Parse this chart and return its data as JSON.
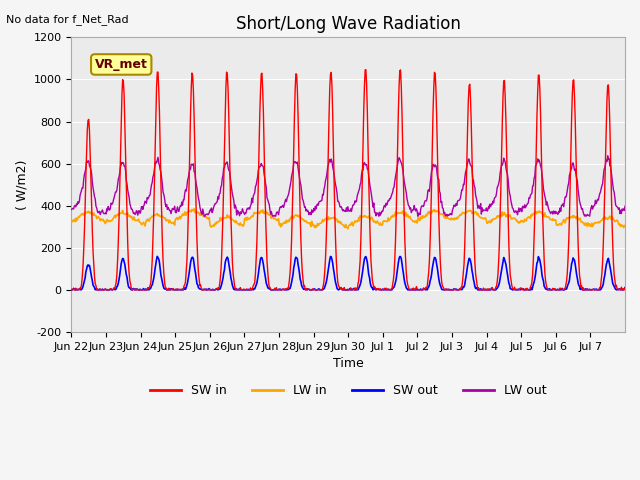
{
  "title": "Short/Long Wave Radiation",
  "ylabel": "( W/m2)",
  "xlabel": "Time",
  "annotation": "No data for f_Net_Rad",
  "legend_label": "VR_met",
  "ylim": [
    -200,
    1200
  ],
  "yticks": [
    -200,
    0,
    200,
    400,
    600,
    800,
    1000,
    1200
  ],
  "xtick_labels": [
    "Jun 22",
    "Jun 23",
    "Jun 24",
    "Jun 25",
    "Jun 26",
    "Jun 27",
    "Jun 28",
    "Jun 29",
    "Jun 30",
    "Jul 1",
    "Jul 2",
    "Jul 3",
    "Jul 4",
    "Jul 5",
    "Jul 6",
    "Jul 7"
  ],
  "colors": {
    "SW_in": "#ff0000",
    "LW_in": "#ffa500",
    "SW_out": "#0000ff",
    "LW_out": "#aa00aa"
  },
  "n_days": 16,
  "pts_per_day": 48,
  "sw_peaks": [
    820,
    1000,
    1040,
    1030,
    1040,
    1040,
    1030,
    1040,
    1055,
    1055,
    1040,
    980,
    1000,
    1030,
    1005,
    980
  ]
}
